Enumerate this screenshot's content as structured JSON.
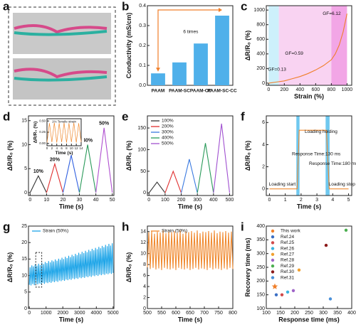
{
  "chart_data": [
    {
      "type": "image",
      "panel": "a"
    },
    {
      "type": "bar",
      "panel": "b",
      "ylabel": "Conductivity (mS/cm)",
      "annotations": [
        "6 times"
      ],
      "categories": [
        "PAAM",
        "PAAM-SC",
        "PAAM-CC",
        "PAAM-SC-CC"
      ],
      "values": [
        0.06,
        0.115,
        0.21,
        0.35
      ],
      "color": "#4fb0ea",
      "ylim": [
        0,
        0.4
      ],
      "yticks": [
        {
          "value": 0,
          "label": "0.0"
        },
        0.1,
        0.2,
        0.3,
        0.4
      ]
    },
    {
      "type": "line",
      "panel": "c",
      "xlabel": "Strain (%)",
      "ylabel": "ΔR/R₀ (%)",
      "annotations": [
        "GF=0.13",
        "GF=0.59",
        "GF=6.12"
      ],
      "regions": [
        {
          "from": 0,
          "to": 130,
          "color": "#cdf0fb"
        },
        {
          "from": 130,
          "to": 800,
          "color": "#f9d3f2"
        },
        {
          "from": 800,
          "to": 1000,
          "color": "#f2a6e6"
        }
      ],
      "x": [
        0,
        100,
        200,
        300,
        400,
        500,
        600,
        700,
        800,
        850,
        900,
        950,
        1000
      ],
      "series": [
        {
          "color": "#f07f2a",
          "values": [
            0,
            15,
            30,
            60,
            90,
            130,
            180,
            240,
            320,
            400,
            520,
            700,
            950
          ]
        }
      ],
      "xlim": [
        -30,
        1060
      ],
      "xticks": [
        0,
        200,
        400,
        600,
        800,
        1000
      ],
      "ylim": [
        -30,
        1060
      ],
      "yticks": [
        0,
        200,
        400,
        600,
        800,
        1000
      ]
    },
    {
      "type": "line",
      "panel": "d",
      "xlabel": "Time (s)",
      "ylabel": "ΔR/R₀ (%)",
      "legend": "peak",
      "series": [
        {
          "name": "10%",
          "color": "#333333",
          "x": [
            0,
            5,
            10
          ],
          "values": [
            0,
            3.5,
            0
          ]
        },
        {
          "name": "20%",
          "color": "#e03030",
          "x": [
            10,
            15,
            20
          ],
          "values": [
            0,
            6,
            0
          ]
        },
        {
          "name": "30%",
          "color": "#3060e0",
          "x": [
            20,
            25,
            30
          ],
          "values": [
            0,
            7.8,
            0
          ]
        },
        {
          "name": "40%",
          "color": "#2a9a5a",
          "x": [
            30,
            35,
            40
          ],
          "values": [
            0,
            10,
            0
          ]
        },
        {
          "name": "50%",
          "color": "#b050d0",
          "x": [
            40,
            45,
            50
          ],
          "values": [
            0,
            13.5,
            0
          ]
        }
      ],
      "xlim": [
        -1,
        51
      ],
      "xticks": [
        0,
        10,
        20,
        30,
        40,
        50
      ],
      "ylim": [
        -0.6,
        16
      ],
      "yticks": [
        0,
        5,
        10,
        15
      ],
      "inset": {
        "type": "line",
        "title": "1% Tensile strain",
        "xlabel": "Time (s)",
        "ylabel": "ΔR/R₀ (%)",
        "x": [
          0,
          1,
          2,
          3,
          4,
          5,
          6,
          7,
          8,
          9,
          10,
          11,
          12,
          13,
          14
        ],
        "series": [
          {
            "color": "#f08a30",
            "values": [
              0.02,
              0.45,
              0.03,
              0.46,
              0.02,
              0.45,
              0.03,
              0.46,
              0.02,
              0.45,
              0.03,
              0.46,
              0.02,
              0.45,
              0.03
            ]
          }
        ],
        "xlim": [
          0,
          14
        ],
        "xticks": [
          0,
          2,
          4,
          6,
          8,
          10,
          12,
          14
        ],
        "ylim": [
          -0.05,
          0.55
        ],
        "yticks": [
          {
            "value": 0,
            "label": "0.00"
          },
          0.25,
          {
            "value": 0.5,
            "label": "0.50"
          }
        ]
      }
    },
    {
      "type": "line",
      "panel": "e",
      "xlabel": "Time (s)",
      "ylabel": "ΔR/R₀ (%)",
      "legend": "upper left",
      "series": [
        {
          "name": "100%",
          "color": "#333333",
          "x": [
            0,
            50,
            100
          ],
          "values": [
            0,
            25,
            0
          ]
        },
        {
          "name": "200%",
          "color": "#e03030",
          "x": [
            100,
            150,
            200
          ],
          "values": [
            0,
            50,
            0
          ]
        },
        {
          "name": "300%",
          "color": "#3a7ae0",
          "x": [
            200,
            250,
            300
          ],
          "values": [
            0,
            78,
            0
          ]
        },
        {
          "name": "400%",
          "color": "#2a9a5a",
          "x": [
            300,
            350,
            400
          ],
          "values": [
            0,
            115,
            0
          ]
        },
        {
          "name": "500%",
          "color": "#a050d0",
          "x": [
            400,
            450,
            500
          ],
          "values": [
            0,
            160,
            0
          ]
        }
      ],
      "xlim": [
        -10,
        520
      ],
      "xticks": [
        0,
        100,
        200,
        300,
        400,
        500
      ],
      "ylim": [
        -6,
        178
      ],
      "yticks": [
        0,
        50,
        100,
        150
      ]
    },
    {
      "type": "line",
      "panel": "f",
      "xlabel": "Time (s)",
      "ylabel": "ΔR/R₀ (%)",
      "annotations": [
        "Loading holding",
        "Response Time:130 ms",
        "Response Time:180 ms",
        "Loading start",
        "Loading stop"
      ],
      "regions": [
        {
          "from": 1.7,
          "to": 1.9,
          "color": "#6fc8ef"
        },
        {
          "from": 3.55,
          "to": 3.8,
          "color": "#6fc8ef"
        }
      ],
      "x": [
        0,
        1.75,
        1.88,
        3.6,
        3.78,
        5
      ],
      "series": [
        {
          "color": "#f08a30",
          "values": [
            0,
            0,
            5.3,
            5.3,
            0,
            0
          ]
        }
      ],
      "xlim": [
        -0.2,
        5.2
      ],
      "xticks": [
        0,
        1,
        2,
        3,
        4,
        5
      ],
      "ylim": [
        -0.6,
        6.6
      ],
      "yticks": [
        0,
        2,
        4,
        6
      ]
    },
    {
      "type": "line",
      "panel": "g",
      "xlabel": "Time (s)",
      "ylabel": "ΔR/R₀ (%)",
      "legend": "upper left",
      "x": [
        0,
        50,
        100,
        150,
        200,
        250,
        300,
        350,
        400,
        450,
        500,
        550,
        600,
        650,
        700,
        750,
        800,
        850,
        900,
        950,
        1000,
        1050,
        1100,
        1150,
        1200,
        1250,
        1300,
        1350,
        1400,
        1450,
        1500,
        1550,
        1600,
        1650,
        1700,
        1750,
        1800,
        1850,
        1900,
        1950,
        2000,
        2050,
        2100,
        2150,
        2200,
        2250,
        2300,
        2350,
        2400,
        2450,
        2500,
        2550,
        2600,
        2650,
        2700,
        2750,
        2800,
        2850,
        2900,
        2950,
        3000,
        3050,
        3100,
        3150,
        3200,
        3250,
        3300,
        3350,
        3400,
        3450,
        3500,
        3550,
        3600,
        3650,
        3700,
        3750,
        3800,
        3850,
        3900,
        3950,
        4000,
        4050,
        4100,
        4150,
        4200,
        4250,
        4300,
        4350,
        4400,
        4450,
        4500,
        4550,
        4600,
        4650,
        4700,
        4750,
        4800,
        4850,
        4900,
        4950,
        5000
      ],
      "series": [
        {
          "name": "Strain (50%)",
          "color": "#1ea5e8",
          "values": [
            7.2,
            12.5,
            7.0,
            13.1,
            7.4,
            12.8,
            7.1,
            13.4,
            7.5,
            13.0,
            7.3,
            13.6,
            7.6,
            13.2,
            7.4,
            13.9,
            7.8,
            13.5,
            7.5,
            14.1,
            7.9,
            13.8,
            7.7,
            14.4,
            8.0,
            14.0,
            7.8,
            14.6,
            8.2,
            14.3,
            8.0,
            14.9,
            8.3,
            14.5,
            8.1,
            15.1,
            8.5,
            14.8,
            8.3,
            15.4,
            8.6,
            15.0,
            8.4,
            15.7,
            8.8,
            15.3,
            8.6,
            16.0,
            8.9,
            15.6,
            8.7,
            16.3,
            9.1,
            15.9,
            8.9,
            16.6,
            9.2,
            16.2,
            9.0,
            16.9,
            9.4,
            16.5,
            9.2,
            17.2,
            9.5,
            16.8,
            9.3,
            17.5,
            9.7,
            17.1,
            9.5,
            17.8,
            9.8,
            17.4,
            9.6,
            18.1,
            10.0,
            17.7,
            9.8,
            18.4,
            10.1,
            18.0,
            9.9,
            18.7,
            10.3,
            18.3,
            10.1,
            19.0,
            10.4,
            18.6,
            10.2,
            19.3,
            10.6,
            18.9,
            10.4,
            19.6,
            10.7,
            19.1,
            10.5,
            19.8,
            10.8
          ]
        }
      ],
      "xlim": [
        -50,
        5050
      ],
      "xticks": [
        0,
        1000,
        2000,
        3000,
        4000,
        5000
      ],
      "ylim": [
        0,
        25
      ],
      "yticks": [
        0,
        5,
        10,
        15,
        20,
        25
      ]
    },
    {
      "type": "line",
      "panel": "h",
      "xlabel": "Time (s)",
      "ylabel": "ΔR/R₀ (%)",
      "legend": "upper left",
      "x": [
        500,
        505,
        510,
        515,
        520,
        525,
        530,
        535,
        540,
        545,
        550,
        555,
        560,
        565,
        570,
        575,
        580,
        585,
        590,
        595,
        600,
        605,
        610,
        615,
        620,
        625,
        630,
        635,
        640,
        645,
        650,
        655,
        660,
        665,
        670,
        675,
        680,
        685,
        690,
        695,
        700,
        705,
        710,
        715,
        720,
        725,
        730,
        735,
        740,
        745,
        750,
        755,
        760,
        765,
        770,
        775,
        780,
        785,
        790,
        795,
        800
      ],
      "series": [
        {
          "name": "Strain (50%)",
          "color": "#f08a30",
          "values": [
            7.5,
            13.9,
            7.2,
            14.1,
            7.4,
            13.6,
            7.1,
            14.0,
            7.3,
            13.8,
            7.0,
            14.2,
            7.4,
            13.7,
            7.2,
            14.0,
            7.1,
            13.9,
            7.3,
            14.1,
            7.0,
            13.8,
            7.4,
            14.2,
            7.2,
            13.6,
            7.1,
            14.0,
            7.3,
            13.9,
            7.0,
            14.1,
            7.2,
            13.8,
            7.4,
            14.2,
            7.1,
            13.7,
            7.3,
            14.0,
            7.2,
            13.9,
            7.0,
            14.1,
            7.4,
            13.8,
            7.1,
            14.2,
            7.3,
            13.7,
            7.2,
            14.0,
            7.0,
            13.9,
            7.3,
            14.1,
            7.1,
            13.8,
            7.4,
            14.0,
            7.2
          ]
        }
      ],
      "xlim": [
        500,
        800
      ],
      "xticks": [
        500,
        550,
        600,
        650,
        700,
        750,
        800
      ],
      "ylim": [
        0,
        15
      ],
      "yticks": [
        0,
        2,
        4,
        6,
        8,
        10,
        12,
        14
      ]
    },
    {
      "type": "scatter",
      "panel": "i",
      "xlabel": "Response time (ms)",
      "ylabel": "Recovery time (ms)",
      "legend": "upper left",
      "series": [
        {
          "name": "This work",
          "color": "#f07f2a",
          "marker": "star",
          "x": [
            130
          ],
          "values": [
            180
          ]
        },
        {
          "name": "Ref.24",
          "color": "#3a6fc4",
          "marker": "circle",
          "x": [
            135
          ],
          "values": [
            150
          ]
        },
        {
          "name": "Ref.25",
          "color": "#d04a4a",
          "marker": "circle",
          "x": [
            155
          ],
          "values": [
            150
          ]
        },
        {
          "name": "Ref.26",
          "color": "#3ab3e0",
          "marker": "circle",
          "x": [
            175
          ],
          "values": [
            160
          ]
        },
        {
          "name": "Ref.27",
          "color": "#f0a030",
          "marker": "circle",
          "x": [
            215
          ],
          "values": [
            240
          ]
        },
        {
          "name": "Ref.28",
          "color": "#a065c8",
          "marker": "circle",
          "x": [
            195
          ],
          "values": [
            165
          ]
        },
        {
          "name": "Ref.29",
          "color": "#4caf50",
          "marker": "circle",
          "x": [
            380
          ],
          "values": [
            385
          ]
        },
        {
          "name": "Ref.30",
          "color": "#8b1a1a",
          "marker": "circle",
          "x": [
            310
          ],
          "values": [
            330
          ]
        },
        {
          "name": "Ref.31",
          "color": "#4a90d9",
          "marker": "circle",
          "x": [
            325
          ],
          "values": [
            135
          ]
        }
      ],
      "xlim": [
        100,
        400
      ],
      "xticks": [
        100,
        150,
        200,
        250,
        300,
        350,
        400
      ],
      "ylim": [
        100,
        400
      ],
      "yticks": [
        100,
        150,
        200,
        250,
        300,
        350,
        400
      ]
    }
  ]
}
